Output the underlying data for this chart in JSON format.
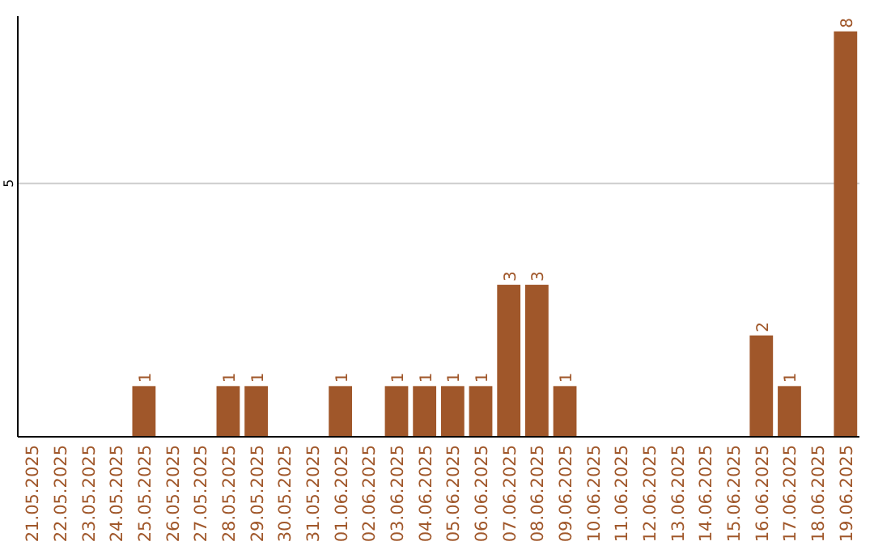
{
  "chart_data": {
    "type": "bar",
    "categories": [
      "21.05.2025",
      "22.05.2025",
      "23.05.2025",
      "24.05.2025",
      "25.05.2025",
      "26.05.2025",
      "27.05.2025",
      "28.05.2025",
      "29.05.2025",
      "30.05.2025",
      "31.05.2025",
      "01.06.2025",
      "02.06.2025",
      "03.06.2025",
      "04.06.2025",
      "05.06.2025",
      "06.06.2025",
      "07.06.2025",
      "08.06.2025",
      "09.06.2025",
      "10.06.2025",
      "11.06.2025",
      "12.06.2025",
      "13.06.2025",
      "14.06.2025",
      "15.06.2025",
      "16.06.2025",
      "17.06.2025",
      "18.06.2025",
      "19.06.2025"
    ],
    "values": [
      0,
      0,
      0,
      0,
      1,
      0,
      0,
      1,
      1,
      0,
      0,
      1,
      0,
      1,
      1,
      1,
      1,
      3,
      3,
      1,
      0,
      0,
      0,
      0,
      0,
      0,
      2,
      1,
      0,
      8
    ],
    "value_labels": [
      null,
      null,
      null,
      null,
      "1",
      null,
      null,
      "1",
      "1",
      null,
      null,
      "1",
      null,
      "1",
      "1",
      "1",
      "1",
      "3",
      "3",
      "1",
      null,
      null,
      null,
      null,
      null,
      null,
      "2",
      "1",
      null,
      "8"
    ],
    "color": "#a0572a",
    "ylim": [
      0,
      8.3
    ],
    "yticks": [
      5
    ],
    "grid": "y"
  }
}
